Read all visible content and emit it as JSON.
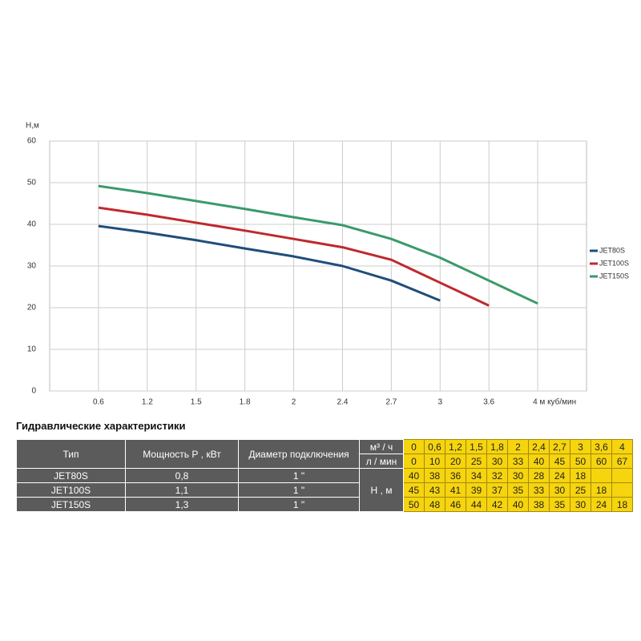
{
  "chart_data": {
    "type": "line",
    "y_label": "H,м",
    "categories": [
      null,
      "0.6",
      "1.2",
      "1.5",
      "1.8",
      "2",
      "2.4",
      "2.7",
      "3",
      "3.6",
      "4 м куб/мин"
    ],
    "series": [
      {
        "name": "JET80S",
        "color": "#1f4e79",
        "values": [
          null,
          39.6,
          38,
          36.2,
          34.2,
          32.3,
          30,
          26.5,
          21.7,
          null,
          null
        ]
      },
      {
        "name": "JET100S",
        "color": "#c0282d",
        "values": [
          null,
          44,
          42.3,
          40.4,
          38.5,
          36.5,
          34.5,
          31.5,
          26,
          20.5,
          null
        ]
      },
      {
        "name": "JET150S",
        "color": "#3a9a6a",
        "values": [
          null,
          49.2,
          47.5,
          45.6,
          43.7,
          41.7,
          39.8,
          36.5,
          32,
          26.5,
          21
        ]
      }
    ],
    "ylim": [
      0,
      60
    ],
    "yticks": [
      0,
      10,
      20,
      30,
      40,
      50,
      60
    ],
    "grid": true,
    "legend": "right"
  },
  "table": {
    "title": "Гидравлические характеристики",
    "headers": [
      "Тип",
      "Мощность Р , кВт",
      "Диаметр подключения"
    ],
    "flow_units": [
      "м³ / ч",
      "л / мин"
    ],
    "flow_m3h": [
      "0",
      "0,6",
      "1,2",
      "1,5",
      "1,8",
      "2",
      "2,4",
      "2,7",
      "3",
      "3,6",
      "4"
    ],
    "flow_lmin": [
      0,
      10,
      20,
      25,
      30,
      33,
      40,
      45,
      50,
      60,
      67
    ],
    "head_label": "Н , м",
    "rows": [
      {
        "type": "JET80S",
        "power": "0,8",
        "diameter": "1 \"",
        "head": [
          40,
          38,
          36,
          34,
          32,
          30,
          28,
          24,
          18
        ]
      },
      {
        "type": "JET100S",
        "power": "1,1",
        "diameter": "1 \"",
        "head": [
          45,
          43,
          41,
          39,
          37,
          35,
          33,
          30,
          25,
          18
        ]
      },
      {
        "type": "JET150S",
        "power": "1,3",
        "diameter": "1 \"",
        "head": [
          50,
          48,
          46,
          44,
          42,
          40,
          38,
          35,
          30,
          24,
          18
        ]
      }
    ]
  }
}
